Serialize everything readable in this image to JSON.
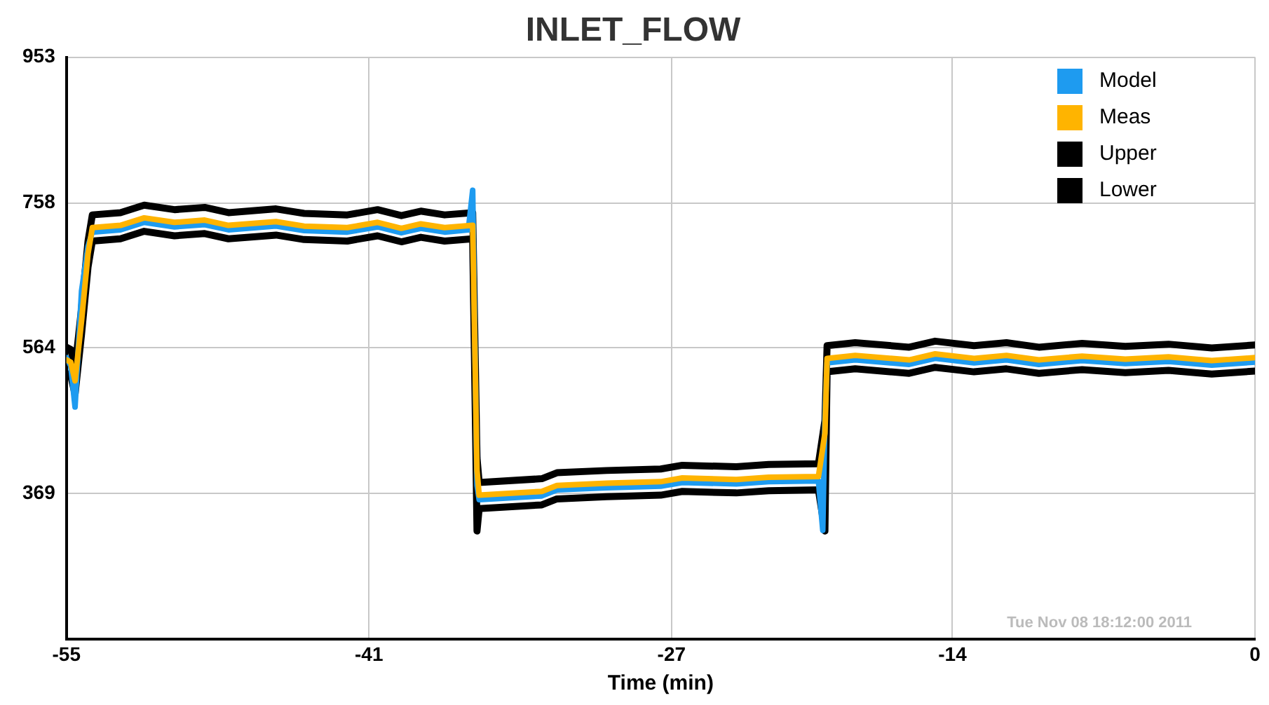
{
  "chart_data": {
    "type": "line",
    "title": "INLET_FLOW",
    "xlabel": "Time (min)",
    "annotations": [
      "Tue Nov 08 18:12:00 2011"
    ],
    "xlim": [
      -55,
      0
    ],
    "xticks": [
      -55,
      -41,
      -27,
      -14,
      0
    ],
    "ylim": [
      174,
      953
    ],
    "yticks": [
      369,
      564,
      758,
      953
    ],
    "grid": true,
    "legend": "top right",
    "marker": "none",
    "line_style": "solid",
    "series": [
      {
        "name": "Model",
        "color": "#1e9bf0",
        "x": [
          -55,
          -54.8,
          -54.6,
          -54.3,
          -54,
          -53.8,
          -52.5,
          -51.4,
          -50,
          -48.6,
          -47.5,
          -45.3,
          -44,
          -42,
          -40.6,
          -39.5,
          -38.6,
          -37.5,
          -36.4,
          -36.2,
          -36.0,
          -35.9,
          -33,
          -32.3,
          -30,
          -27.5,
          -26.5,
          -24,
          -22.5,
          -20.2,
          -20.0,
          -19.9,
          -19.8,
          -18.5,
          -16,
          -14.8,
          -13,
          -11.5,
          -10,
          -8,
          -6,
          -4,
          -2,
          0
        ],
        "values": [
          551,
          540,
          485,
          640,
          700,
          719,
          722,
          732,
          726,
          729,
          722,
          727,
          721,
          719,
          726,
          718,
          724,
          719,
          722,
          775,
          380,
          361,
          366,
          374,
          377,
          379,
          384,
          382,
          385,
          386,
          320,
          470,
          544,
          548,
          542,
          550,
          544,
          548,
          542,
          547,
          543,
          546,
          541,
          545
        ]
      },
      {
        "name": "Meas",
        "color": "#ffb400",
        "x": [
          -55,
          -54.8,
          -54.6,
          -54.3,
          -54,
          -53.8,
          -52.5,
          -51.4,
          -50,
          -48.6,
          -47.5,
          -45.3,
          -44,
          -42,
          -40.6,
          -39.5,
          -38.6,
          -37.5,
          -36.2,
          -36.0,
          -35.9,
          -33,
          -32.3,
          -30,
          -27.5,
          -26.5,
          -24,
          -22.5,
          -20.2,
          -19.9,
          -19.8,
          -18.5,
          -16,
          -14.8,
          -13,
          -11.5,
          -10,
          -8,
          -6,
          -4,
          -2,
          0
        ],
        "values": [
          548,
          545,
          520,
          600,
          690,
          725,
          728,
          738,
          732,
          735,
          728,
          733,
          727,
          725,
          732,
          724,
          730,
          725,
          728,
          400,
          367,
          372,
          380,
          383,
          385,
          390,
          388,
          391,
          392,
          450,
          550,
          554,
          548,
          556,
          550,
          554,
          548,
          553,
          549,
          552,
          547,
          551
        ]
      },
      {
        "name": "Upper",
        "color": "#000000",
        "x": [
          -55,
          -54.8,
          -54.6,
          -54.3,
          -54,
          -53.8,
          -52.5,
          -51.4,
          -50,
          -48.6,
          -47.5,
          -45.3,
          -44,
          -42,
          -40.6,
          -39.5,
          -38.6,
          -37.5,
          -36.2,
          -36.0,
          -35.9,
          -33,
          -32.3,
          -30,
          -27.5,
          -26.5,
          -24,
          -22.5,
          -20.2,
          -19.9,
          -19.8,
          -18.5,
          -16,
          -14.8,
          -13,
          -11.5,
          -10,
          -8,
          -6,
          -4,
          -2,
          0
        ],
        "values": [
          565,
          562,
          537,
          617,
          707,
          742,
          745,
          755,
          749,
          752,
          745,
          750,
          744,
          742,
          749,
          741,
          747,
          742,
          745,
          417,
          384,
          389,
          397,
          400,
          402,
          407,
          405,
          408,
          409,
          467,
          567,
          571,
          565,
          573,
          567,
          571,
          565,
          570,
          566,
          569,
          564,
          568
        ]
      },
      {
        "name": "Lower",
        "color": "#000000",
        "x": [
          -55,
          -54.8,
          -54.6,
          -54.3,
          -54,
          -53.8,
          -52.5,
          -51.4,
          -50,
          -48.6,
          -47.5,
          -45.3,
          -44,
          -42,
          -40.6,
          -39.5,
          -38.6,
          -37.5,
          -36.2,
          -36.0,
          -35.9,
          -33,
          -32.3,
          -30,
          -27.5,
          -26.5,
          -24,
          -22.5,
          -20.2,
          -19.9,
          -19.8,
          -18.5,
          -16,
          -14.8,
          -13,
          -11.5,
          -10,
          -8,
          -6,
          -4,
          -2,
          0
        ],
        "values": [
          530,
          527,
          502,
          582,
          672,
          707,
          710,
          720,
          714,
          717,
          710,
          715,
          709,
          707,
          714,
          706,
          712,
          707,
          710,
          319,
          349,
          354,
          362,
          365,
          367,
          372,
          370,
          373,
          374,
          319,
          532,
          536,
          530,
          538,
          532,
          536,
          530,
          535,
          531,
          534,
          529,
          533
        ]
      }
    ]
  }
}
